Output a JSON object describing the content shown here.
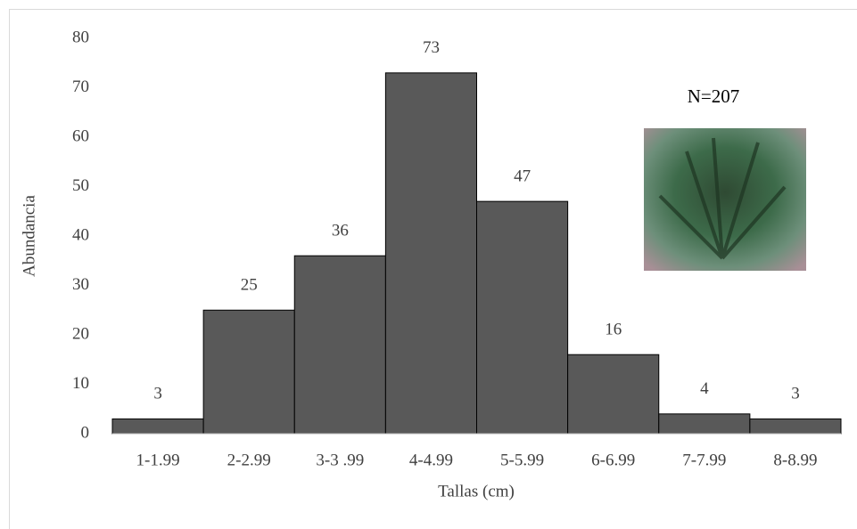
{
  "chart_data": {
    "type": "bar",
    "annotation": "N=207",
    "x_label": "Tallas (cm)",
    "y_label": "Abundancia",
    "categories": [
      "1-1.99",
      "2-2.99",
      "3-3 .99",
      "4-4.99",
      "5-5.99",
      "6-6.99",
      "7-7.99",
      "8-8.99"
    ],
    "values": [
      3,
      25,
      36,
      73,
      47,
      16,
      4,
      3
    ],
    "color": "#595959",
    "ylim": [
      0,
      80
    ],
    "yticks": [
      0,
      10,
      20,
      30,
      40,
      50,
      60,
      70,
      80
    ],
    "grid": false
  }
}
